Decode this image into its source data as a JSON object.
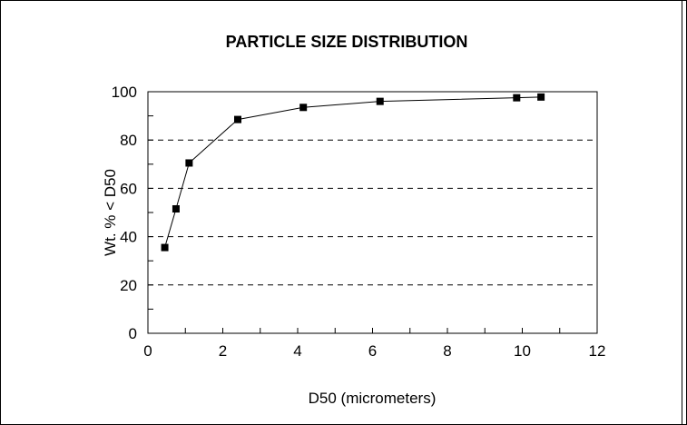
{
  "chart_data": {
    "type": "line",
    "title": "PARTICLE SIZE DISTRIBUTION",
    "xlabel": "D50 (micrometers)",
    "ylabel": "Wt. % < D50",
    "xlim": [
      0,
      12
    ],
    "ylim": [
      0,
      100
    ],
    "x_ticks": [
      "0",
      "2",
      "4",
      "6",
      "8",
      "10",
      "12"
    ],
    "y_ticks": [
      "0",
      "20",
      "40",
      "60",
      "80",
      "100"
    ],
    "grid": "horizontal dashed",
    "series": [
      {
        "x": [
          0.45,
          0.75,
          1.1,
          2.4,
          4.15,
          6.2,
          9.85,
          10.5
        ],
        "y": [
          35.5,
          51.5,
          70.5,
          88.5,
          93.5,
          96,
          97.5,
          97.8
        ]
      }
    ]
  }
}
